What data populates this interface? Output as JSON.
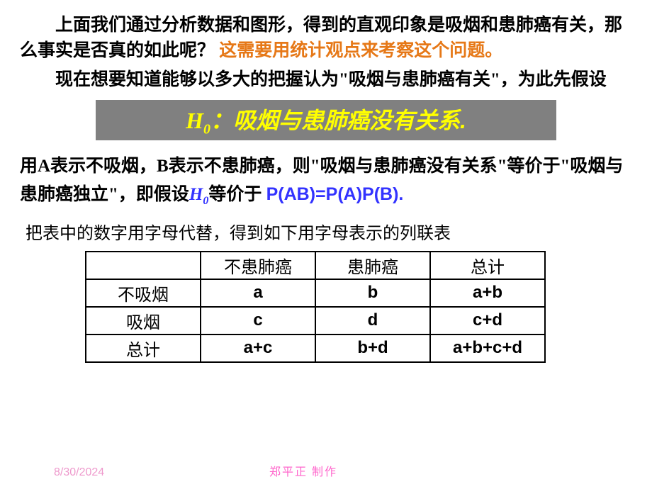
{
  "para1_a": "上面我们通过分析数据和图形，得到的直观印象是吸烟和患肺癌有关，那么事实是否真的如此呢？",
  "para1_b": "这需要用统计观点来考察这个问题。",
  "para2": "现在想要知道能够以多大的把握认为\"吸烟与患肺癌有关\"，为此先假设",
  "hypothesis": {
    "h0_label": "H",
    "h0_sub": "0",
    "text": "：吸烟与患肺癌没有关系."
  },
  "para3_a": "用A表示不吸烟，B表示不患肺癌，则\"吸烟与患肺癌没有关系\"等价于\"吸烟与患肺癌独立\"，即假设",
  "para3_h0": "H",
  "para3_h0_sub": "0",
  "para3_b": "等价于 ",
  "para3_prob": "P(AB)=P(A)P(B).",
  "para4": "把表中的数字用字母代替，得到如下用字母表示的列联表",
  "table": {
    "headers": [
      "",
      "不患肺癌",
      "患肺癌",
      "总计"
    ],
    "rows": [
      [
        "不吸烟",
        "a",
        "b",
        "a+b"
      ],
      [
        "吸烟",
        "c",
        "d",
        "c+d"
      ],
      [
        "总计",
        "a+c",
        "b+d",
        "a+b+c+d"
      ]
    ]
  },
  "footer": {
    "date": "8/30/2024",
    "author": "郑平正   制作"
  },
  "colors": {
    "orange": "#e67817",
    "blue": "#3333ff",
    "yellow": "#ffff00",
    "gray_bg": "#808080",
    "pink_light": "#ee99cc",
    "pink": "#ff66cc"
  }
}
